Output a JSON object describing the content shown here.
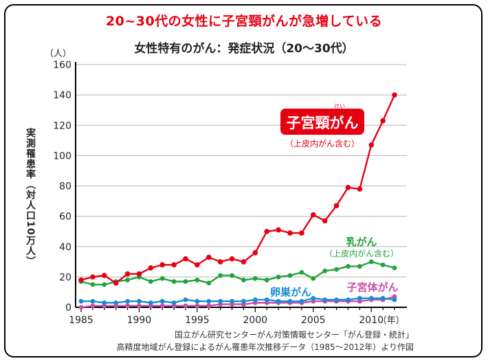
{
  "headline": "20~30代の女性に子宮頸がんが急増している",
  "source_lines": [
    "国立がん研究センターがん対策情報センター「がん登録・統計」",
    "高精度地域がん登録によるがん罹患年次推移データ（1985〜2012年）より作図"
  ],
  "colors": {
    "cervical": "#e60012",
    "breast": "#22a33a",
    "ovarian": "#1a8ad4",
    "uterine_body": "#c84ea8",
    "headline": "#e60012"
  },
  "chart_data": {
    "type": "line",
    "title": "女性特有のがん：発症状況（20〜30代）",
    "ylabel": "実測罹患率（対人口10万人）",
    "yunit": "（人）",
    "xunit": "（年）",
    "ylim": [
      0,
      160
    ],
    "yticks": [
      0,
      20,
      40,
      60,
      80,
      100,
      120,
      140,
      160
    ],
    "xticks": [
      1985,
      1990,
      1995,
      2000,
      2005,
      2010
    ],
    "x": [
      1985,
      1986,
      1987,
      1988,
      1989,
      1990,
      1991,
      1992,
      1993,
      1994,
      1995,
      1996,
      1997,
      1998,
      1999,
      2000,
      2001,
      2002,
      2003,
      2004,
      2005,
      2006,
      2007,
      2008,
      2009,
      2010,
      2011,
      2012
    ],
    "series": [
      {
        "key": "cervical",
        "name": "子宮頸がん",
        "ruby": "けい",
        "note": "（上皮内がん含む）",
        "values": [
          18,
          20,
          21,
          16,
          22,
          22,
          26,
          28,
          28,
          32,
          28,
          33,
          30,
          32,
          30,
          36,
          50,
          51,
          49,
          49,
          61,
          57,
          67,
          79,
          78,
          107,
          123,
          140
        ]
      },
      {
        "key": "breast",
        "name": "乳がん",
        "note": "（上皮内がん含む）",
        "values": [
          17,
          15,
          15,
          17,
          18,
          20,
          17,
          19,
          17,
          17,
          18,
          16,
          21,
          21,
          18,
          19,
          18,
          20,
          21,
          23,
          19,
          24,
          25,
          27,
          27,
          30,
          28,
          26
        ]
      },
      {
        "key": "ovarian",
        "name": "卵巣がん",
        "values": [
          4,
          4,
          3,
          3,
          4,
          4,
          3,
          4,
          3,
          5,
          4,
          4,
          4,
          4,
          4,
          5,
          5,
          4,
          4,
          4,
          6,
          5,
          5,
          5,
          6,
          6,
          6,
          5
        ]
      },
      {
        "key": "uterine_body",
        "name": "子宮体がん",
        "values": [
          0,
          1,
          1,
          1,
          1,
          1,
          1,
          1,
          1,
          1,
          1,
          1,
          2,
          2,
          2,
          3,
          3,
          3,
          3,
          3,
          4,
          4,
          4,
          4,
          4,
          5,
          5,
          7
        ]
      }
    ]
  }
}
